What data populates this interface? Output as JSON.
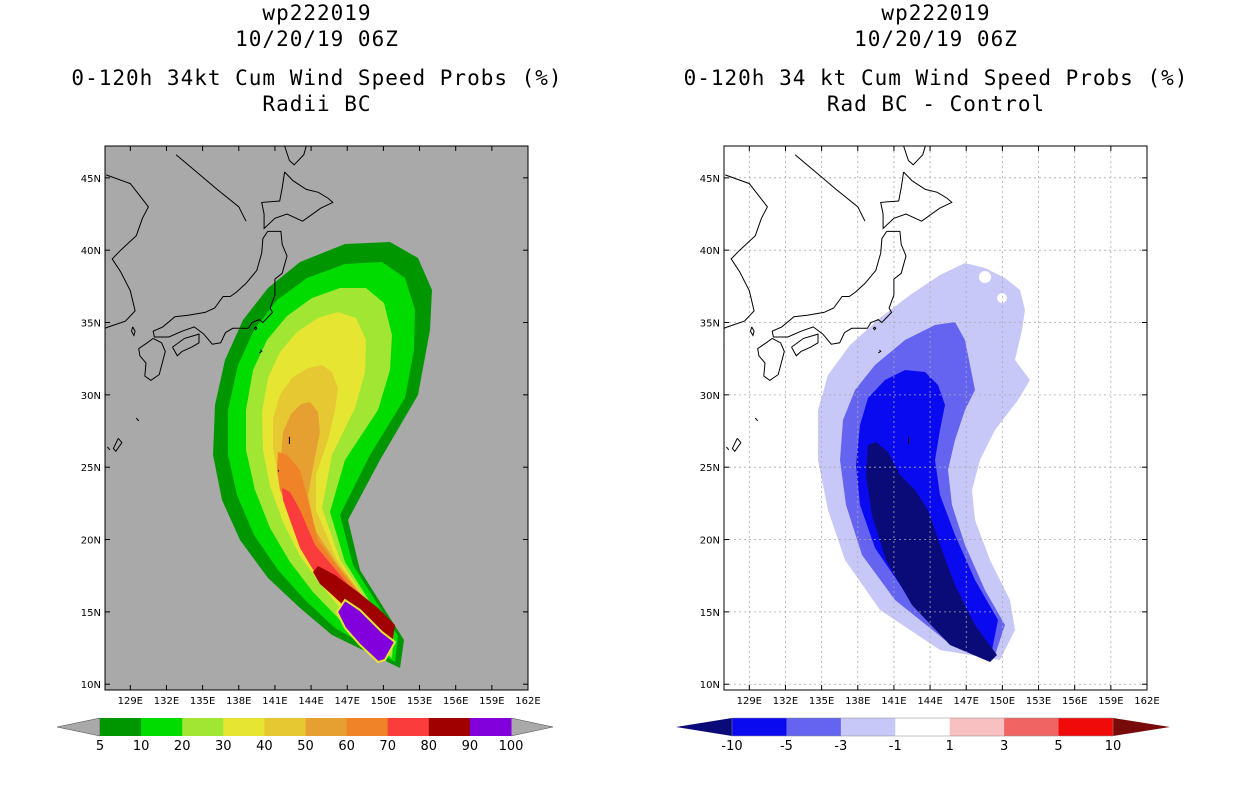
{
  "panels": [
    {
      "id": "left",
      "title_line1": "wp222019",
      "title_line2": "10/20/19 06Z",
      "title_line3": "0-120h 34kt Cum Wind Speed Probs (%)",
      "title_line4": "Radii BC",
      "background": "#a9a9a9"
    },
    {
      "id": "right",
      "title_line1": "wp222019",
      "title_line2": "10/20/19 06Z",
      "title_line3": "0-120h 34 kt Cum Wind Speed Probs (%)",
      "title_line4": "Rad BC - Control",
      "background": "#ffffff"
    }
  ],
  "chart_data": [
    {
      "type": "heatmap",
      "title": "0-120h 34kt Cum Wind Speed Probs (%) - Radii BC",
      "x_ticks": [
        "129E",
        "132E",
        "135E",
        "138E",
        "141E",
        "144E",
        "147E",
        "150E",
        "153E",
        "156E",
        "159E",
        "162E"
      ],
      "y_ticks": [
        "10N",
        "15N",
        "20N",
        "25N",
        "30N",
        "35N",
        "40N",
        "45N"
      ],
      "xlim_deg_e": [
        126.9,
        162
      ],
      "ylim_deg_n": [
        9.6,
        47.2
      ],
      "grid": false,
      "colorbar": {
        "labels": [
          "5",
          "10",
          "20",
          "30",
          "40",
          "50",
          "60",
          "70",
          "80",
          "90",
          "100"
        ],
        "colors": [
          "#009600",
          "#00dc00",
          "#a0e632",
          "#e6e632",
          "#e6c832",
          "#e6a032",
          "#f08228",
          "#fa3c3c",
          "#a00000",
          "#8200dc"
        ],
        "end_color": "#a9a9a9"
      }
    },
    {
      "type": "heatmap",
      "title": "0-120h 34 kt Cum Wind Speed Probs (%) - Rad BC - Control",
      "x_ticks": [
        "129E",
        "132E",
        "135E",
        "138E",
        "141E",
        "144E",
        "147E",
        "150E",
        "153E",
        "156E",
        "159E",
        "162E"
      ],
      "y_ticks": [
        "10N",
        "15N",
        "20N",
        "25N",
        "30N",
        "35N",
        "40N",
        "45N"
      ],
      "xlim_deg_e": [
        126.9,
        162
      ],
      "ylim_deg_n": [
        9.6,
        47.2
      ],
      "grid": true,
      "colorbar": {
        "labels": [
          "-10",
          "-5",
          "-3",
          "-1",
          "1",
          "3",
          "5",
          "10"
        ],
        "colors": [
          "#0a0a78",
          "#0a0af0",
          "#6464f0",
          "#c8c8f8",
          "#ffffff",
          "#f8c0c0",
          "#f06464",
          "#f00a0a",
          "#780a0a"
        ]
      }
    }
  ]
}
